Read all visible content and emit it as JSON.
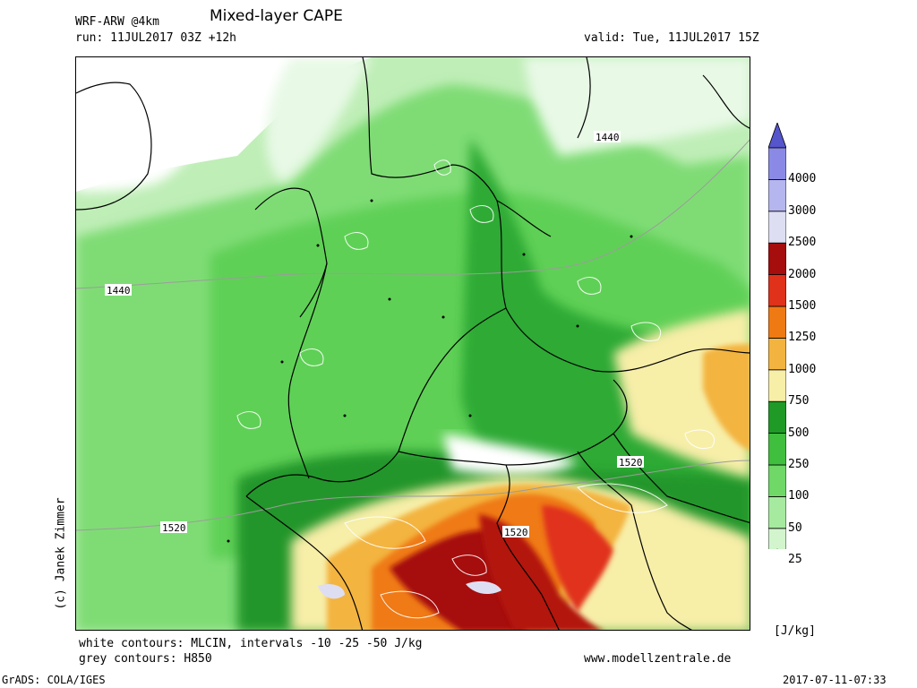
{
  "header": {
    "model": "WRF-ARW @4km",
    "title": "Mixed-layer CAPE",
    "run": "run: 11JUL2017 03Z +12h",
    "valid": "valid: Tue, 11JUL2017 15Z"
  },
  "footer": {
    "white_contours": "white contours: MLCIN, intervals -10 -25 -50 J/kg",
    "grey_contours": "grey contours: H850",
    "website": "www.modellzentrale.de",
    "grads": "GrADS: COLA/IGES",
    "timestamp": "2017-07-11-07:33"
  },
  "credit": "(c) Janek Zimmer",
  "legend": {
    "unit": "[J/kg]",
    "levels": [
      "25",
      "50",
      "100",
      "250",
      "500",
      "750",
      "1000",
      "1250",
      "1500",
      "2000",
      "2500",
      "3000",
      "4000"
    ],
    "colors": [
      "#ffffff",
      "#d2f5cd",
      "#a6eaa0",
      "#6fd867",
      "#3fbf3d",
      "#1f9a27",
      "#f7eea8",
      "#f3b43f",
      "#ef7a14",
      "#e0311a",
      "#a60d0d",
      "#dedef3",
      "#b5b5ef",
      "#8a8ae6",
      "#5555cc"
    ]
  },
  "map_labels": {
    "contour_north": "1440",
    "contour_west": "1440",
    "contour_east": "1520",
    "contour_sw": "1520",
    "contour_south": "1520"
  }
}
